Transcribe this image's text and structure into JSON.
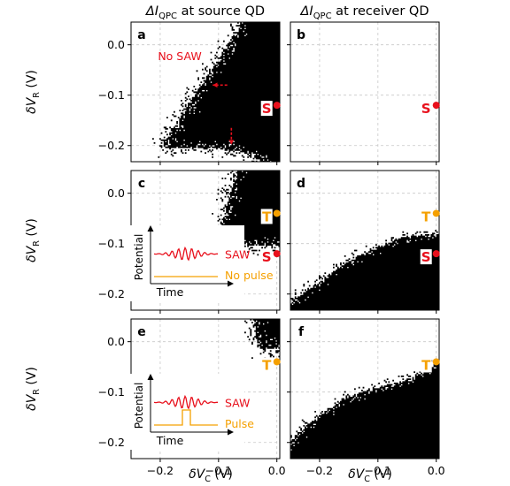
{
  "figure": {
    "col_titles": [
      {
        "text": "ΔI",
        "sub": "QPC",
        "tail": " at source QD"
      },
      {
        "text": "ΔI",
        "sub": "QPC",
        "tail": " at receiver QD"
      }
    ],
    "ylabel": {
      "main": "δV",
      "sub": "R",
      "unit": " (V)"
    },
    "xlabel": {
      "main": "δV",
      "sub": "C",
      "unit": " (V)"
    }
  },
  "colors": {
    "red": "#e8101c",
    "orange": "#f5a000",
    "black": "#000000",
    "grid": "#c8c8c8"
  },
  "chart_data": [
    {
      "type": "heatmap",
      "panel": "a",
      "xlim": [
        -0.25,
        0.005
      ],
      "ylim": [
        -0.232,
        0.045
      ],
      "xticks": [
        "-0.2",
        "-0.1",
        "0.0"
      ],
      "yticks": [
        "0.0",
        "-0.1",
        "-0.2"
      ],
      "grid": true,
      "region": "black triangle-shaped region with apex near (-0.2, -0.2), bounded above by line from (-0.2,-0.2) to (-0.06,0.045) and below by curve ~ -0.2 → -0.25 near x=0.0",
      "annotations": [
        {
          "text": "No SAW",
          "color": "red"
        }
      ],
      "arrows": [
        {
          "from": [
            -0.085,
            -0.08
          ],
          "to": [
            -0.11,
            -0.08
          ],
          "color": "red"
        },
        {
          "from": [
            -0.078,
            -0.165
          ],
          "to": [
            -0.078,
            -0.198
          ],
          "color": "red"
        }
      ],
      "markers": [
        {
          "label": "S",
          "x": 0.0,
          "y": -0.12,
          "color": "red"
        }
      ]
    },
    {
      "type": "heatmap",
      "panel": "b",
      "xlim": [
        -0.25,
        0.005
      ],
      "ylim": [
        -0.232,
        0.045
      ],
      "xticks": [
        "-0.2",
        "-0.1",
        "0.0"
      ],
      "yticks": [
        "0.0",
        "-0.1",
        "-0.2"
      ],
      "grid": true,
      "region": "empty",
      "markers": [
        {
          "label": "S",
          "x": 0.0,
          "y": -0.12,
          "color": "red"
        }
      ]
    },
    {
      "type": "heatmap",
      "panel": "c",
      "xlim": [
        -0.25,
        0.005
      ],
      "ylim": [
        -0.232,
        0.045
      ],
      "xticks": [
        "-0.2",
        "-0.1",
        "0.0"
      ],
      "yticks": [
        "0.0",
        "-0.1",
        "-0.2"
      ],
      "grid": true,
      "region": "black region at upper right, left edge from (-0.105,-0.1) to (-0.07,0.045), bottom ~ -0.1",
      "markers": [
        {
          "label": "T",
          "x": 0.0,
          "y": -0.04,
          "color": "orange"
        },
        {
          "label": "S",
          "x": 0.0,
          "y": -0.12,
          "color": "red"
        }
      ],
      "inset": {
        "ylabel": "Potential",
        "xlabel": "Time",
        "traces": [
          {
            "label": "SAW",
            "color": "red"
          },
          {
            "label": "No pulse",
            "color": "orange"
          }
        ]
      }
    },
    {
      "type": "heatmap",
      "panel": "d",
      "xlim": [
        -0.25,
        0.005
      ],
      "ylim": [
        -0.232,
        0.045
      ],
      "xticks": [
        "-0.2",
        "-0.1",
        "0.0"
      ],
      "yticks": [
        "0.0",
        "-0.1",
        "-0.2"
      ],
      "grid": true,
      "region": "black region below a dome curve from (-0.25,-0.21) rising to ~(-0.05,-0.09) and (0.0,-0.1)",
      "markers": [
        {
          "label": "T",
          "x": 0.0,
          "y": -0.04,
          "color": "orange"
        },
        {
          "label": "S",
          "x": 0.0,
          "y": -0.12,
          "color": "red"
        }
      ]
    },
    {
      "type": "heatmap",
      "panel": "e",
      "xlim": [
        -0.25,
        0.005
      ],
      "ylim": [
        -0.232,
        0.045
      ],
      "xticks": [
        "-0.2",
        "-0.1",
        "0.0"
      ],
      "yticks": [
        "0.0",
        "-0.1",
        "-0.2"
      ],
      "grid": true,
      "region": "small black patch at top right, x ~ -0.04 to 0.005, y ~ -0.01 to 0.045",
      "markers": [
        {
          "label": "T",
          "x": 0.0,
          "y": -0.04,
          "color": "orange"
        }
      ],
      "inset": {
        "ylabel": "Potential",
        "xlabel": "Time",
        "traces": [
          {
            "label": "SAW",
            "color": "red"
          },
          {
            "label": "Pulse",
            "color": "orange"
          }
        ]
      }
    },
    {
      "type": "heatmap",
      "panel": "f",
      "xlim": [
        -0.25,
        0.005
      ],
      "ylim": [
        -0.232,
        0.045
      ],
      "xticks": [
        "-0.2",
        "-0.1",
        "0.0"
      ],
      "yticks": [
        "0.0",
        "-0.1",
        "-0.2"
      ],
      "grid": true,
      "region": "black region below a rising diagonal boundary from (-0.25,-0.19) to (0.0,-0.02)",
      "markers": [
        {
          "label": "T",
          "x": 0.0,
          "y": -0.04,
          "color": "orange"
        }
      ]
    }
  ]
}
